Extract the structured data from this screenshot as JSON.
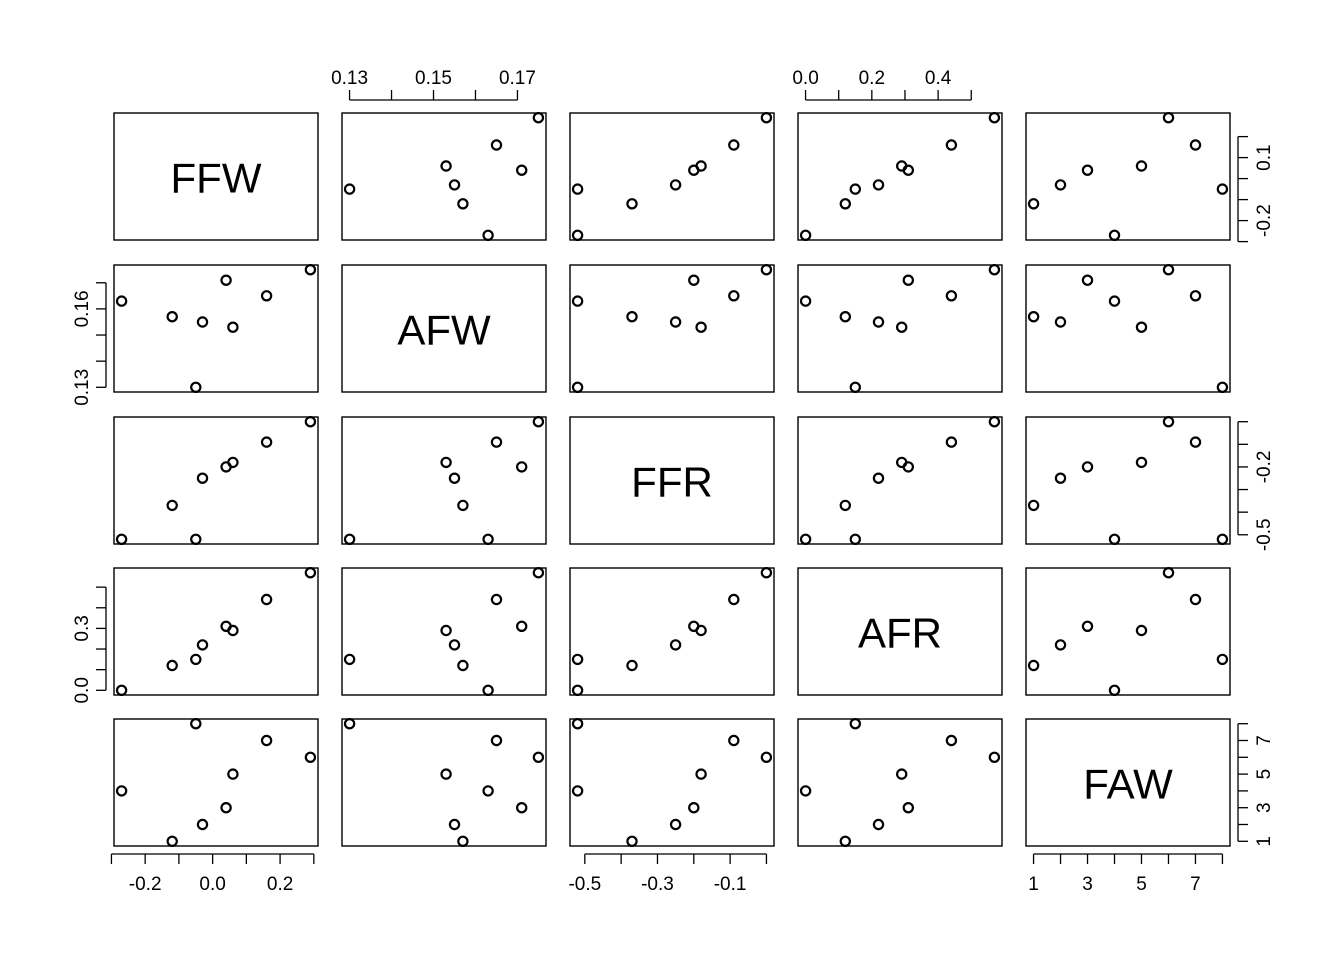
{
  "chart_data": {
    "type": "scatter-matrix",
    "title": "",
    "variables": [
      "FFW",
      "AFW",
      "FFR",
      "AFR",
      "FAW"
    ],
    "observations": {
      "FFW": [
        -0.27,
        -0.12,
        -0.03,
        -0.05,
        0.04,
        0.06,
        0.16,
        0.29
      ],
      "AFW": [
        0.163,
        0.157,
        0.155,
        0.13,
        0.171,
        0.153,
        0.165,
        0.175
      ],
      "FFR": [
        -0.52,
        -0.37,
        -0.25,
        -0.52,
        -0.2,
        -0.18,
        -0.09,
        0.0
      ],
      "AFR": [
        0.0,
        0.12,
        0.22,
        0.15,
        0.31,
        0.29,
        0.44,
        0.57
      ],
      "FAW": [
        4,
        1,
        2,
        8,
        3,
        5,
        7,
        6
      ]
    },
    "ranges": {
      "FFW": [
        -0.27,
        0.29
      ],
      "AFW": [
        0.13,
        0.175
      ],
      "FFR": [
        -0.52,
        0.0
      ],
      "AFR": [
        0.0,
        0.57
      ],
      "FAW": [
        1,
        8
      ]
    },
    "axes": {
      "top": [
        {
          "column": 1,
          "ticks": [
            0.13,
            0.14,
            0.15,
            0.16,
            0.17
          ],
          "tick_labels": [
            "0.13",
            "",
            "0.15",
            "",
            "0.17"
          ]
        },
        {
          "column": 3,
          "ticks": [
            0.0,
            0.1,
            0.2,
            0.3,
            0.4,
            0.5
          ],
          "tick_labels": [
            "0.0",
            "",
            "0.2",
            "",
            "0.4",
            ""
          ]
        }
      ],
      "bottom": [
        {
          "column": 0,
          "ticks": [
            -0.3,
            -0.2,
            -0.1,
            0.0,
            0.1,
            0.2,
            0.3
          ],
          "tick_labels": [
            "",
            "-0.2",
            "",
            "0.0",
            "",
            "0.2",
            ""
          ]
        },
        {
          "column": 2,
          "ticks": [
            -0.5,
            -0.4,
            -0.3,
            -0.2,
            -0.1,
            0.0
          ],
          "tick_labels": [
            "-0.5",
            "",
            "-0.3",
            "",
            "-0.1",
            ""
          ]
        },
        {
          "column": 4,
          "ticks": [
            1,
            2,
            3,
            4,
            5,
            6,
            7,
            8
          ],
          "tick_labels": [
            "1",
            "",
            "3",
            "",
            "5",
            "",
            "7",
            ""
          ]
        }
      ],
      "left": [
        {
          "row": 1,
          "ticks": [
            0.13,
            0.14,
            0.15,
            0.16,
            0.17
          ],
          "tick_labels": [
            "0.13",
            "",
            "",
            "0.16",
            ""
          ]
        },
        {
          "row": 3,
          "ticks": [
            0.0,
            0.1,
            0.2,
            0.3,
            0.4,
            0.5
          ],
          "tick_labels": [
            "0.0",
            "",
            "",
            "0.3",
            "",
            ""
          ]
        }
      ],
      "right": [
        {
          "row": 0,
          "ticks": [
            -0.3,
            -0.2,
            -0.1,
            0.0,
            0.1,
            0.2
          ],
          "tick_labels": [
            "",
            "-0.2",
            "",
            "",
            "0.1",
            ""
          ]
        },
        {
          "row": 2,
          "ticks": [
            -0.5,
            -0.4,
            -0.3,
            -0.2,
            -0.1,
            0.0
          ],
          "tick_labels": [
            "-0.5",
            "",
            "",
            "-0.2",
            "",
            ""
          ]
        },
        {
          "row": 4,
          "ticks": [
            1,
            2,
            3,
            4,
            5,
            6,
            7,
            8
          ],
          "tick_labels": [
            "1",
            "",
            "3",
            "",
            "5",
            "",
            "7",
            ""
          ]
        }
      ]
    },
    "grid": false,
    "legend": "none",
    "point_style": "open-circle",
    "colors": {
      "ink": "#000000",
      "background": "#ffffff"
    }
  }
}
